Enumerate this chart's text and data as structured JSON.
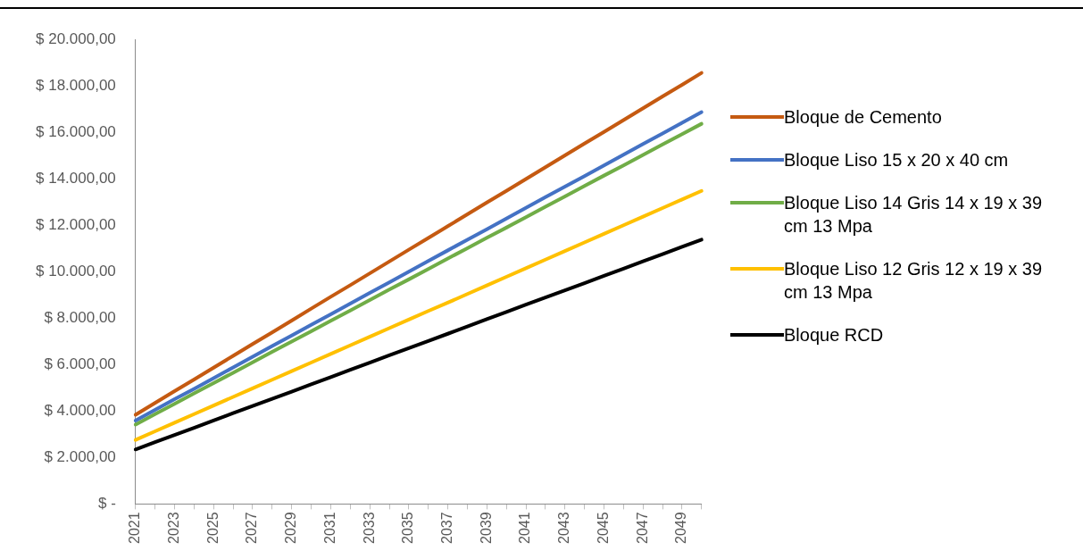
{
  "chart_data": {
    "type": "line",
    "categories": [
      "2021",
      null,
      "2023",
      null,
      "2025",
      null,
      "2027",
      null,
      "2029",
      null,
      "2031",
      null,
      "2033",
      null,
      "2035",
      null,
      "2037",
      null,
      "2039",
      null,
      "2041",
      null,
      "2043",
      null,
      "2045",
      null,
      "2047",
      null,
      "2049",
      null
    ],
    "series": [
      {
        "name": "Bloque de Cemento",
        "color": "#c55a11",
        "values": [
          3840,
          4350,
          4860,
          5360,
          5870,
          6380,
          6890,
          7390,
          7900,
          8410,
          8920,
          9420,
          9930,
          10440,
          10950,
          11450,
          11960,
          12470,
          12980,
          13480,
          13990,
          14500,
          15010,
          15520,
          16020,
          16530,
          17040,
          17550,
          18050,
          18560
        ]
      },
      {
        "name": "Bloque Liso 15 x 20 x 40 cm",
        "color": "#4472c4",
        "values": [
          3590,
          4050,
          4510,
          4960,
          5420,
          5880,
          6340,
          6800,
          7250,
          7710,
          8170,
          8630,
          9090,
          9540,
          10000,
          10460,
          10920,
          11380,
          11830,
          12290,
          12750,
          13210,
          13660,
          14120,
          14580,
          15040,
          15500,
          15950,
          16410,
          16870
        ]
      },
      {
        "name": "Bloque Liso 14 Gris 14 x 19 x 39 cm 13 Mpa",
        "color": "#70ad47",
        "values": [
          3420,
          3870,
          4310,
          4760,
          5210,
          5650,
          6100,
          6550,
          6990,
          7440,
          7890,
          8330,
          8780,
          9230,
          9670,
          10120,
          10570,
          11010,
          11460,
          11900,
          12350,
          12800,
          13240,
          13690,
          14140,
          14580,
          15030,
          15480,
          15920,
          16370
        ]
      },
      {
        "name": "Bloque Liso 12 Gris 12 x 19 x 39 cm 13 Mpa",
        "color": "#ffc000",
        "values": [
          2760,
          3130,
          3500,
          3870,
          4240,
          4610,
          4980,
          5350,
          5720,
          6090,
          6460,
          6830,
          7200,
          7570,
          7940,
          8310,
          8670,
          9040,
          9410,
          9780,
          10150,
          10520,
          10890,
          11260,
          11630,
          12000,
          12370,
          12740,
          13110,
          13480
        ]
      },
      {
        "name": "Bloque RCD",
        "color": "#000000",
        "values": [
          2350,
          2660,
          2970,
          3280,
          3600,
          3910,
          4220,
          4530,
          4840,
          5150,
          5460,
          5780,
          6090,
          6400,
          6710,
          7020,
          7330,
          7640,
          7960,
          8270,
          8580,
          8890,
          9200,
          9510,
          9820,
          10130,
          10450,
          10760,
          11070,
          11380
        ]
      }
    ],
    "ylim": [
      0,
      20000
    ],
    "yticks": [
      {
        "value": 0,
        "label": "$ -"
      },
      {
        "value": 2000,
        "label": "$ 2.000,00"
      },
      {
        "value": 4000,
        "label": "$ 4.000,00"
      },
      {
        "value": 6000,
        "label": "$ 6.000,00"
      },
      {
        "value": 8000,
        "label": "$ 8.000,00"
      },
      {
        "value": 10000,
        "label": "$ 10.000,00"
      },
      {
        "value": 12000,
        "label": "$ 12.000,00"
      },
      {
        "value": 14000,
        "label": "$ 14.000,00"
      },
      {
        "value": 16000,
        "label": "$ 16.000,00"
      },
      {
        "value": 18000,
        "label": "$ 18.000,00"
      },
      {
        "value": 20000,
        "label": "$ 20.000,00"
      }
    ],
    "grid": false,
    "legend": "right",
    "marker": "none",
    "line_style": "solid"
  }
}
